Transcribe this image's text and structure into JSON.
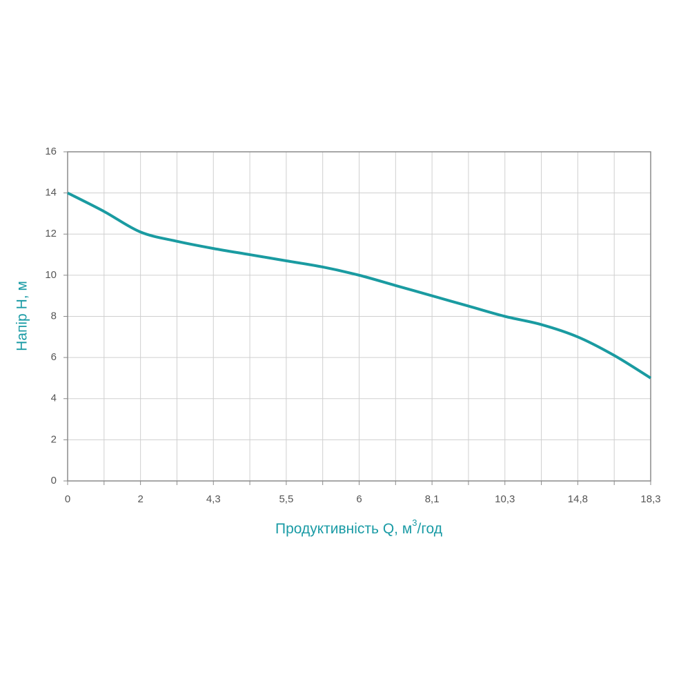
{
  "chart_data": {
    "type": "line",
    "ylabel": "Напір Н, м",
    "xlabel": {
      "text": "Продуктивність Q, м",
      "sup": "3",
      "suffix": "/год"
    },
    "categories": [
      "0",
      null,
      "2",
      null,
      "4,3",
      null,
      "5,5",
      null,
      "6",
      null,
      "8,1",
      null,
      "10,3",
      null,
      "14,8",
      null,
      "18,3"
    ],
    "series": [
      {
        "color": "#1a9ba1",
        "values": [
          14,
          13.1,
          12.1,
          11.65,
          11.3,
          11.0,
          10.7,
          10.4,
          10.0,
          9.5,
          9.0,
          8.5,
          8.0,
          7.6,
          7.0,
          6.1,
          5.0
        ]
      }
    ],
    "ylim": [
      0,
      16
    ],
    "yticks": [
      0,
      2,
      4,
      6,
      8,
      10,
      12,
      14,
      16
    ],
    "grid": true
  }
}
